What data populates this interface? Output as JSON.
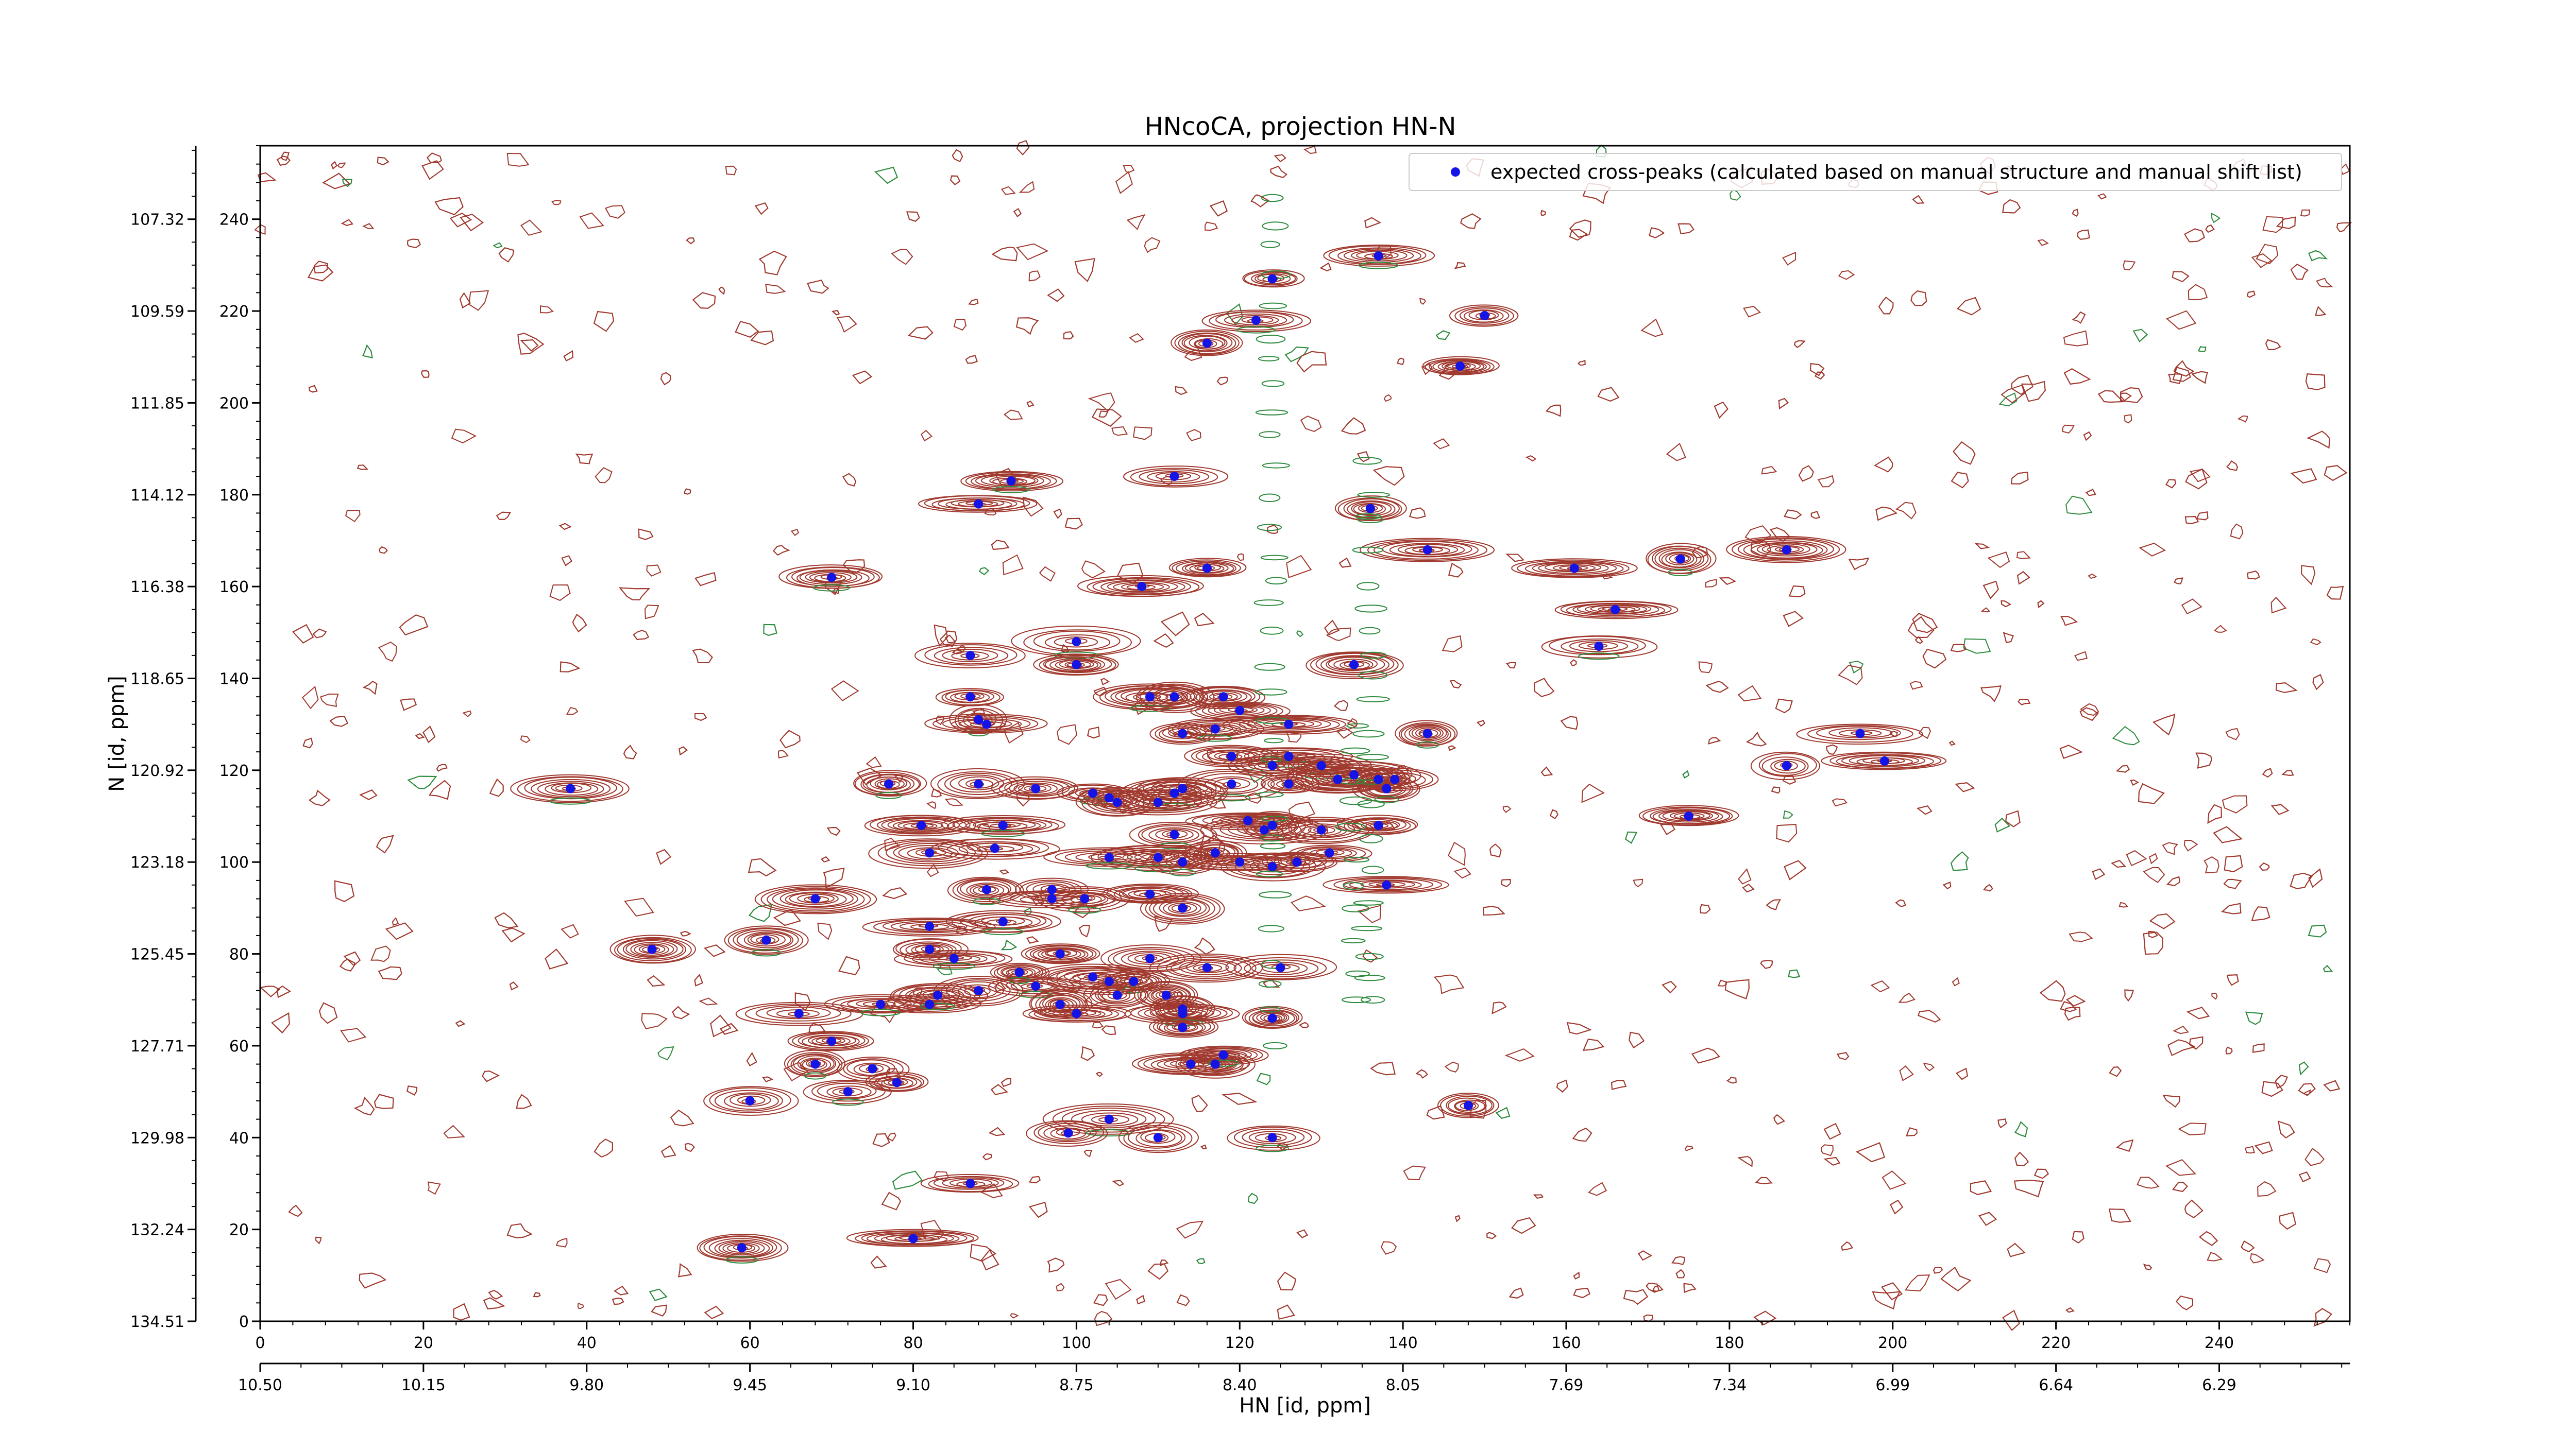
{
  "chart_data": {
    "type": "scatter",
    "title": "HNcoCA, projection HN-N",
    "xlabel": "HN [id, ppm]",
    "ylabel": "N [id, ppm]",
    "xlim": [
      0,
      256
    ],
    "ylim": [
      0,
      256
    ],
    "x_index_ticks": [
      "0",
      "20",
      "40",
      "60",
      "80",
      "100",
      "120",
      "140",
      "160",
      "180",
      "200",
      "220",
      "240"
    ],
    "x_ppm_ticks": [
      "10.50",
      "10.15",
      "9.80",
      "9.45",
      "9.10",
      "8.75",
      "8.40",
      "8.05",
      "7.69",
      "7.34",
      "6.99",
      "6.64",
      "6.29"
    ],
    "y_index_ticks": [
      "0",
      "20",
      "40",
      "60",
      "80",
      "100",
      "120",
      "140",
      "160",
      "180",
      "200",
      "220",
      "240"
    ],
    "y_ppm_ticks": [
      "134.51",
      "132.24",
      "129.98",
      "127.71",
      "125.45",
      "123.18",
      "120.92",
      "118.65",
      "116.38",
      "114.12",
      "111.85",
      "109.59",
      "107.32"
    ],
    "grid": false,
    "legend_position": "top-right",
    "contour_colors": {
      "positive": "#a0392e",
      "negative": "#2e8b3e"
    },
    "marker_color": "#1414e6",
    "series": [
      {
        "name": "expected cross-peaks (calculated based on manual structure and manual shift list)",
        "points": [
          [
            137,
            232
          ],
          [
            124,
            227
          ],
          [
            150,
            219
          ],
          [
            122,
            218
          ],
          [
            116,
            213
          ],
          [
            147,
            208
          ],
          [
            92,
            183
          ],
          [
            112,
            184
          ],
          [
            88,
            178
          ],
          [
            136,
            177
          ],
          [
            116,
            164
          ],
          [
            143,
            168
          ],
          [
            174,
            166
          ],
          [
            187,
            168
          ],
          [
            161,
            164
          ],
          [
            70,
            162
          ],
          [
            108,
            160
          ],
          [
            166,
            155
          ],
          [
            100,
            148
          ],
          [
            87,
            145
          ],
          [
            100,
            143
          ],
          [
            164,
            147
          ],
          [
            134,
            143
          ],
          [
            87,
            136
          ],
          [
            109,
            136
          ],
          [
            112,
            136
          ],
          [
            118,
            136
          ],
          [
            88,
            131
          ],
          [
            89,
            130
          ],
          [
            120,
            133
          ],
          [
            117,
            129
          ],
          [
            113,
            128
          ],
          [
            126,
            130
          ],
          [
            143,
            128
          ],
          [
            196,
            128
          ],
          [
            199,
            122
          ],
          [
            126,
            123
          ],
          [
            124,
            121
          ],
          [
            119,
            123
          ],
          [
            130,
            121
          ],
          [
            134,
            119
          ],
          [
            139,
            118
          ],
          [
            138,
            116
          ],
          [
            132,
            118
          ],
          [
            137,
            118
          ],
          [
            119,
            117
          ],
          [
            126,
            117
          ],
          [
            187,
            121
          ],
          [
            77,
            117
          ],
          [
            88,
            117
          ],
          [
            113,
            116
          ],
          [
            102,
            115
          ],
          [
            104,
            114
          ],
          [
            95,
            116
          ],
          [
            112,
            115
          ],
          [
            105,
            113
          ],
          [
            110,
            113
          ],
          [
            38,
            116
          ],
          [
            175,
            110
          ],
          [
            81,
            108
          ],
          [
            91,
            108
          ],
          [
            121,
            109
          ],
          [
            123,
            107
          ],
          [
            124,
            108
          ],
          [
            130,
            107
          ],
          [
            137,
            108
          ],
          [
            112,
            106
          ],
          [
            82,
            102
          ],
          [
            90,
            103
          ],
          [
            110,
            101
          ],
          [
            117,
            102
          ],
          [
            131,
            102
          ],
          [
            104,
            101
          ],
          [
            127,
            100
          ],
          [
            124,
            99
          ],
          [
            113,
            100
          ],
          [
            120,
            100
          ],
          [
            138,
            95
          ],
          [
            89,
            94
          ],
          [
            68,
            92
          ],
          [
            97,
            92
          ],
          [
            101,
            92
          ],
          [
            113,
            90
          ],
          [
            109,
            93
          ],
          [
            91,
            87
          ],
          [
            82,
            86
          ],
          [
            97,
            94
          ],
          [
            62,
            83
          ],
          [
            48,
            81
          ],
          [
            82,
            81
          ],
          [
            85,
            79
          ],
          [
            98,
            80
          ],
          [
            109,
            79
          ],
          [
            95,
            73
          ],
          [
            116,
            77
          ],
          [
            125,
            77
          ],
          [
            93,
            76
          ],
          [
            102,
            75
          ],
          [
            104,
            74
          ],
          [
            107,
            74
          ],
          [
            66,
            67
          ],
          [
            82,
            69
          ],
          [
            76,
            69
          ],
          [
            105,
            71
          ],
          [
            111,
            71
          ],
          [
            113,
            68
          ],
          [
            124,
            66
          ],
          [
            88,
            72
          ],
          [
            83,
            71
          ],
          [
            98,
            69
          ],
          [
            100,
            67
          ],
          [
            113,
            67
          ],
          [
            113,
            64
          ],
          [
            70,
            61
          ],
          [
            68,
            56
          ],
          [
            75,
            55
          ],
          [
            78,
            52
          ],
          [
            72,
            50
          ],
          [
            117,
            56
          ],
          [
            114,
            56
          ],
          [
            118,
            58
          ],
          [
            148,
            47
          ],
          [
            60,
            48
          ],
          [
            104,
            44
          ],
          [
            99,
            41
          ],
          [
            110,
            40
          ],
          [
            124,
            40
          ],
          [
            87,
            30
          ],
          [
            80,
            18
          ],
          [
            59,
            16
          ]
        ]
      }
    ]
  }
}
